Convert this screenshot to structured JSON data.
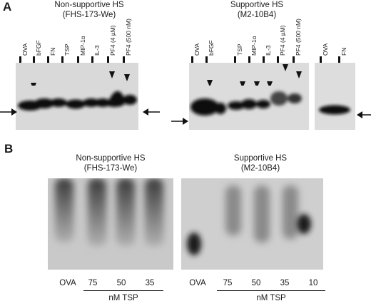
{
  "panel_a": {
    "letter": "A",
    "left_title_line1": "Non-supportive HS",
    "left_title_line2": "(FHS-173-We)",
    "right_title_line1": "Supportive HS",
    "right_title_line2": "(M2-10B4)",
    "left_lanes": [
      "OVA",
      "bFGF",
      "FN",
      "TSP",
      "MIP-1α",
      "IL-3",
      "PF4 (4 µM)",
      "PF4 (500 nM)"
    ],
    "right_lanes": [
      "OVA",
      "bFGF",
      "TSP",
      "MIP-1α",
      "IL-3",
      "PF4 (4 µM)",
      "PF4 (500 nM)"
    ],
    "extra_lanes": [
      "OVA",
      "FN"
    ]
  },
  "panel_b": {
    "letter": "B",
    "left_title_line1": "Non-supportive HS",
    "left_title_line2": "(FHS-173-We)",
    "right_title_line1": "Supportive HS",
    "right_title_line2": "(M2-10B4)",
    "left_lane_labels": [
      "OVA",
      "75",
      "50",
      "35"
    ],
    "left_group_label": "nM TSP",
    "right_lane_labels": [
      "OVA",
      "75",
      "50",
      "35",
      "10"
    ],
    "right_group_label": "nM TSP"
  }
}
